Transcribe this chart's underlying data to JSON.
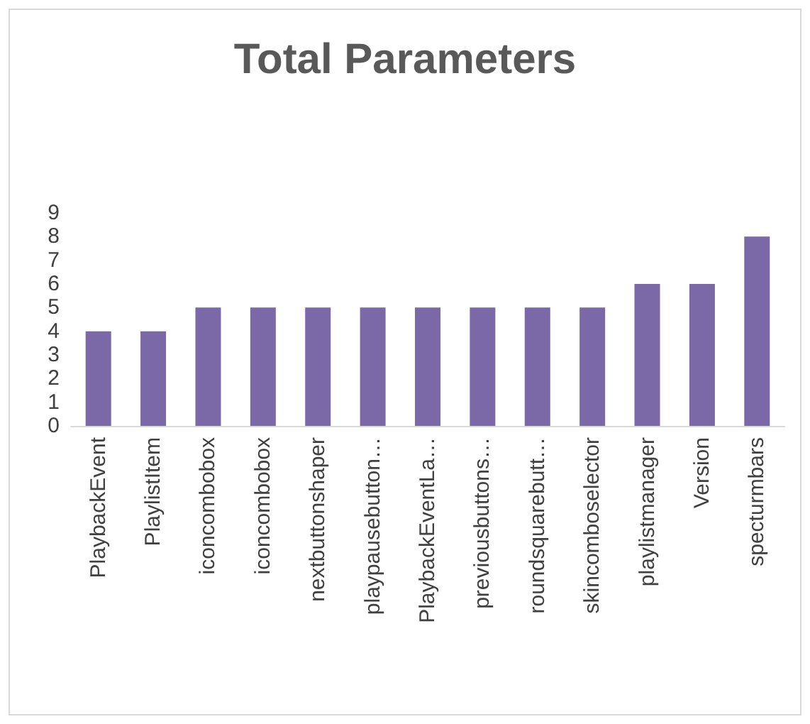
{
  "chart_data": {
    "type": "bar",
    "title": "Total Parameters",
    "categories": [
      "PlaybackEvent",
      "PlaylistItem",
      "iconcombobox",
      "iconcombobox",
      "nextbuttonshaper",
      "playpausebutton…",
      "PlaybackEventLa…",
      "previousbuttons…",
      "roundsquarebutt…",
      "skincomboselector",
      "playlistmanager",
      "Version",
      "specturmbars"
    ],
    "values": [
      4,
      4,
      5,
      5,
      5,
      5,
      5,
      5,
      5,
      5,
      6,
      6,
      8
    ],
    "color": "#7b68a6",
    "ylim": [
      0,
      9
    ],
    "yticks": [
      0,
      1,
      2,
      3,
      4,
      5,
      6,
      7,
      8,
      9
    ]
  }
}
